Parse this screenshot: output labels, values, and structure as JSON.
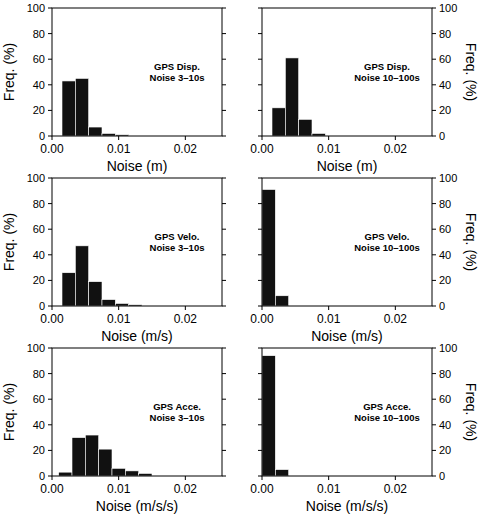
{
  "chart_data": [
    {
      "type": "histogram",
      "annotation": [
        "GPS Disp.",
        "Noise 3–10s"
      ],
      "xlabel": "Noise (m)",
      "ylabel": "Freq. (%)",
      "bins": [
        0.0015,
        0.0035,
        0.0055,
        0.0075,
        0.0095,
        0.0115
      ],
      "values": [
        43,
        45,
        7,
        2,
        1
      ],
      "color": "#111111",
      "xlim": [
        0,
        0.0255
      ],
      "ylim": [
        0,
        100
      ],
      "xticks": [
        {
          "value": 0,
          "label": "0.00"
        },
        {
          "value": 0.01,
          "label": "0.01"
        },
        {
          "value": 0.02,
          "label": "0.02"
        }
      ],
      "yticks": [
        0,
        20,
        40,
        60,
        80,
        100
      ]
    },
    {
      "type": "histogram",
      "annotation": [
        "GPS Disp.",
        "Noise 10–100s"
      ],
      "xlabel": "Noise (m)",
      "ylabel": "Freq. (%)",
      "bins": [
        0.0015,
        0.0035,
        0.0055,
        0.0075,
        0.0095
      ],
      "values": [
        22,
        61,
        13,
        2
      ],
      "color": "#111111",
      "xlim": [
        0,
        0.0255
      ],
      "ylim": [
        0,
        100
      ],
      "xticks": [
        {
          "value": 0,
          "label": "0.00"
        },
        {
          "value": 0.01,
          "label": "0.01"
        },
        {
          "value": 0.02,
          "label": "0.02"
        }
      ],
      "yticks": [
        0,
        20,
        40,
        60,
        80,
        100
      ]
    },
    {
      "type": "histogram",
      "annotation": [
        "GPS Velo.",
        "Noise 3–10s"
      ],
      "xlabel": "Noise (m/s)",
      "ylabel": "Freq. (%)",
      "bins": [
        0.0015,
        0.0035,
        0.0055,
        0.0075,
        0.0095,
        0.0115,
        0.0135
      ],
      "values": [
        26,
        47,
        19,
        5,
        2,
        1
      ],
      "color": "#111111",
      "xlim": [
        0,
        0.0255
      ],
      "ylim": [
        0,
        100
      ],
      "xticks": [
        {
          "value": 0,
          "label": "0.00"
        },
        {
          "value": 0.01,
          "label": "0.01"
        },
        {
          "value": 0.02,
          "label": "0.02"
        }
      ],
      "yticks": [
        0,
        20,
        40,
        60,
        80,
        100
      ]
    },
    {
      "type": "histogram",
      "annotation": [
        "GPS Velo.",
        "Noise 10–100s"
      ],
      "xlabel": "Noise (m/s)",
      "ylabel": "Freq. (%)",
      "bins": [
        0,
        0.002,
        0.004
      ],
      "values": [
        91,
        8
      ],
      "color": "#111111",
      "xlim": [
        0,
        0.0255
      ],
      "ylim": [
        0,
        100
      ],
      "xticks": [
        {
          "value": 0,
          "label": "0.00"
        },
        {
          "value": 0.01,
          "label": "0.01"
        },
        {
          "value": 0.02,
          "label": "0.02"
        }
      ],
      "yticks": [
        0,
        20,
        40,
        60,
        80,
        100
      ]
    },
    {
      "type": "histogram",
      "annotation": [
        "GPS Acce.",
        "Noise 3–10s"
      ],
      "xlabel": "Noise (m/s/s)",
      "ylabel": "Freq. (%)",
      "bins": [
        0.001,
        0.003,
        0.005,
        0.007,
        0.009,
        0.011,
        0.013,
        0.015
      ],
      "values": [
        3,
        30,
        32,
        21,
        6,
        4,
        2
      ],
      "color": "#111111",
      "xlim": [
        0,
        0.0255
      ],
      "ylim": [
        0,
        100
      ],
      "xticks": [
        {
          "value": 0,
          "label": "0.00"
        },
        {
          "value": 0.01,
          "label": "0.01"
        },
        {
          "value": 0.02,
          "label": "0.02"
        }
      ],
      "yticks": [
        0,
        20,
        40,
        60,
        80,
        100
      ]
    },
    {
      "type": "histogram",
      "annotation": [
        "GPS Acce.",
        "Noise 10–100s"
      ],
      "xlabel": "Noise (m/s/s)",
      "ylabel": "Freq. (%)",
      "bins": [
        0,
        0.002,
        0.004
      ],
      "values": [
        94,
        5
      ],
      "color": "#111111",
      "xlim": [
        0,
        0.0255
      ],
      "ylim": [
        0,
        100
      ],
      "xticks": [
        {
          "value": 0,
          "label": "0.00"
        },
        {
          "value": 0.01,
          "label": "0.01"
        },
        {
          "value": 0.02,
          "label": "0.02"
        }
      ],
      "yticks": [
        0,
        20,
        40,
        60,
        80,
        100
      ]
    }
  ]
}
